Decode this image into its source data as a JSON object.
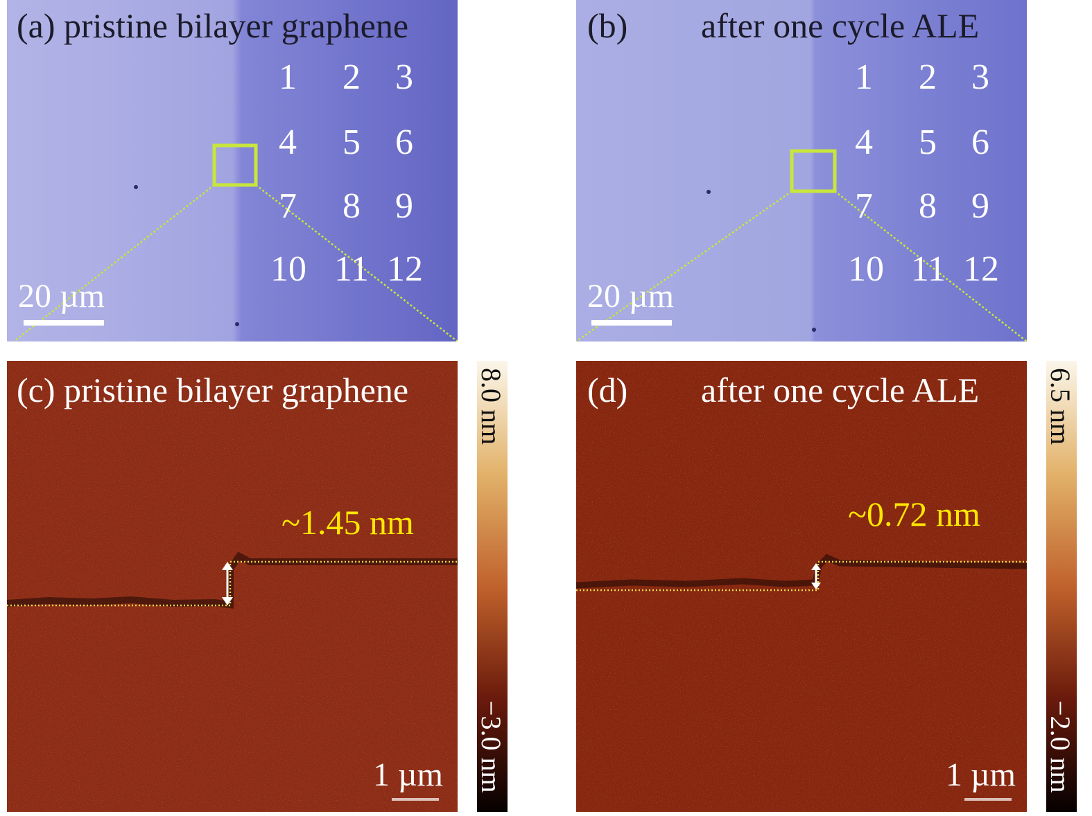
{
  "panels": {
    "a": {
      "letter": "(a)",
      "title": "pristine bilayer graphene",
      "scale": "20 µm",
      "grid": [
        "1",
        "2",
        "3",
        "4",
        "5",
        "6",
        "7",
        "8",
        "9",
        "10",
        "11",
        "12"
      ]
    },
    "b": {
      "letter": "(b)",
      "title": "after one cycle ALE",
      "scale": "20 µm",
      "grid": [
        "1",
        "2",
        "3",
        "4",
        "5",
        "6",
        "7",
        "8",
        "9",
        "10",
        "11",
        "12"
      ]
    },
    "c": {
      "letter": "(c)",
      "title": "pristine bilayer graphene",
      "step": "~1.45 nm",
      "scale": "1 µm",
      "colorbar_max": "8.0 nm",
      "colorbar_min": "−3.0 nm"
    },
    "d": {
      "letter": "(d)",
      "title": "after one cycle ALE",
      "step": "~0.72 nm",
      "scale": "1 µm",
      "colorbar_max": "6.5 nm",
      "colorbar_min": "−2.0 nm"
    }
  },
  "colors": {
    "optical_light": "#a7a9e0",
    "optical_dark": "#6a6dc8",
    "afm": "#8a2a14",
    "highlight_box": "#c8e63c",
    "step_label": "#ffe800"
  }
}
